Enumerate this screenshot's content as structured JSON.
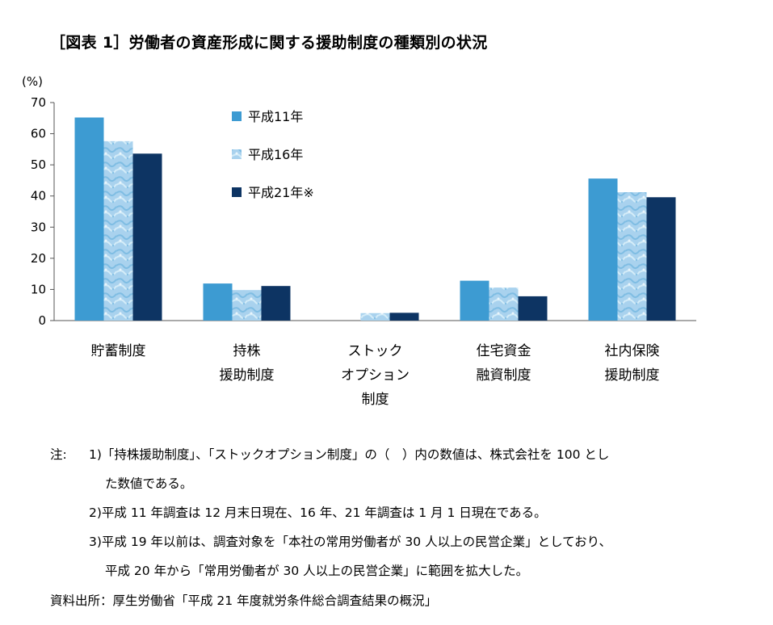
{
  "title": "［図表 1］労働者の資産形成に関する援助制度の種類別の状況",
  "chart_data": {
    "type": "bar",
    "ylabel": "(%)",
    "ylim": [
      0,
      70
    ],
    "yticks": [
      0,
      10,
      20,
      30,
      40,
      50,
      60,
      70
    ],
    "categories": [
      [
        "貯蓄制度"
      ],
      [
        "持株",
        "援助制度"
      ],
      [
        "ストック",
        "オプション",
        "制度"
      ],
      [
        "住宅資金",
        "融資制度"
      ],
      [
        "社内保険",
        "援助制度"
      ]
    ],
    "series": [
      {
        "name": "平成11年",
        "values": [
          65.2,
          11.9,
          0,
          12.8,
          45.6
        ],
        "color": "#3d9bd2",
        "pattern": "solid"
      },
      {
        "name": "平成16年",
        "values": [
          57.6,
          9.8,
          2.4,
          10.6,
          41.2
        ],
        "color": "#a9d2ee",
        "pattern": "textured"
      },
      {
        "name": "平成21年※",
        "values": [
          53.6,
          11.1,
          2.5,
          7.8,
          39.6
        ],
        "color": "#0d3463",
        "pattern": "solid"
      }
    ],
    "legend_position": "top-center",
    "grid": false
  },
  "notes": {
    "label": "注:",
    "items": [
      {
        "num": "1)",
        "lines": [
          "「持株援助制度」、「ストックオプション制度」の（　）内の数値は、株式会社を 100 とし",
          "た数値である。"
        ]
      },
      {
        "num": "2)",
        "lines": [
          "平成 11 年調査は 12 月末日現在、16 年、21 年調査は 1 月 1 日現在である。"
        ]
      },
      {
        "num": "3)",
        "lines": [
          "平成 19 年以前は、調査対象を「本社の常用労働者が 30 人以上の民営企業」としており、",
          "平成 20 年から「常用労働者が 30 人以上の民営企業」に範囲を拡大した。"
        ]
      }
    ]
  },
  "source": "資料出所：厚生労働省「平成 21 年度就労条件総合調査結果の概況」"
}
